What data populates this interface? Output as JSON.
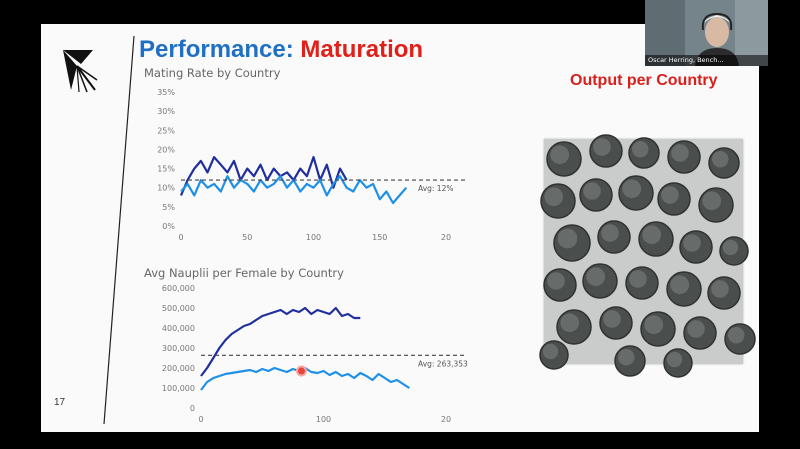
{
  "slide": {
    "title_part1": "Performance:",
    "title_part2": "Maturation",
    "output_title": "Output per Country",
    "slide_number": "17",
    "colors": {
      "title_blue": "#1f6fc5",
      "title_red": "#e0201b",
      "dark_series": "#1f2f9e",
      "light_series": "#1e90e8"
    }
  },
  "webcam": {
    "name": "Oscar Herring, Bench..."
  },
  "chart_data": [
    {
      "type": "line",
      "title": "Mating Rate by Country",
      "x_ticks": [
        "0",
        "50",
        "100",
        "150",
        "20"
      ],
      "y_ticks": [
        "0%",
        "5%",
        "10%",
        "15%",
        "20%",
        "25%",
        "30%",
        "35%"
      ],
      "xlim": [
        0,
        200
      ],
      "ylim": [
        0,
        35
      ],
      "y_unit": "%",
      "grid": false,
      "reference_line": {
        "value": 12,
        "label": "Avg: 12%"
      },
      "series": [
        {
          "x": [
            0,
            5,
            10,
            15,
            20,
            25,
            30,
            35,
            40,
            45,
            50,
            55,
            60,
            65,
            70,
            75,
            80,
            85,
            90,
            95,
            100,
            105,
            110,
            115,
            120,
            125
          ],
          "values": [
            8,
            12,
            15,
            17,
            14,
            18,
            16,
            14,
            17,
            12,
            15,
            13,
            16,
            12,
            15,
            13,
            14,
            12,
            15,
            13,
            18,
            12,
            16,
            10,
            15,
            12
          ],
          "color": "#1f2f9e"
        },
        {
          "x": [
            0,
            5,
            10,
            15,
            20,
            25,
            30,
            35,
            40,
            45,
            50,
            55,
            60,
            65,
            70,
            75,
            80,
            85,
            90,
            95,
            100,
            105,
            110,
            115,
            120,
            125,
            130,
            135,
            140,
            145,
            150,
            155,
            160,
            165,
            170
          ],
          "values": [
            9,
            11,
            8,
            12,
            10,
            11,
            9,
            13,
            10,
            12,
            11,
            9,
            12,
            10,
            11,
            13,
            10,
            12,
            9,
            11,
            10,
            12,
            8,
            11,
            13,
            10,
            9,
            12,
            10,
            11,
            7,
            9,
            6,
            8,
            10
          ],
          "color": "#1e90e8"
        }
      ]
    },
    {
      "type": "line",
      "title": "Avg Nauplii per Female by Country",
      "x_ticks": [
        "0",
        "100",
        "20"
      ],
      "y_ticks": [
        "0",
        "100,000",
        "200,000",
        "300,000",
        "400,000",
        "500,000",
        "600,000"
      ],
      "xlim": [
        0,
        200
      ],
      "ylim": [
        0,
        600000
      ],
      "grid": false,
      "reference_line": {
        "value": 263353,
        "label": "Avg: 263,353"
      },
      "series": [
        {
          "x": [
            0,
            5,
            10,
            15,
            20,
            25,
            30,
            35,
            40,
            45,
            50,
            55,
            60,
            65,
            70,
            75,
            80,
            85,
            90,
            95,
            100,
            105,
            110,
            115,
            120,
            125,
            130
          ],
          "values": [
            160000,
            200000,
            250000,
            300000,
            340000,
            370000,
            390000,
            410000,
            420000,
            440000,
            460000,
            470000,
            480000,
            490000,
            470000,
            490000,
            480000,
            500000,
            470000,
            490000,
            480000,
            470000,
            500000,
            460000,
            470000,
            450000,
            450000
          ],
          "color": "#1f2f9e"
        },
        {
          "x": [
            0,
            5,
            10,
            15,
            20,
            25,
            30,
            35,
            40,
            45,
            50,
            55,
            60,
            65,
            70,
            75,
            80,
            85,
            90,
            95,
            100,
            105,
            110,
            115,
            120,
            125,
            130,
            135,
            140,
            145,
            150,
            155,
            160,
            165,
            170
          ],
          "values": [
            90000,
            130000,
            150000,
            160000,
            170000,
            175000,
            180000,
            185000,
            190000,
            180000,
            195000,
            185000,
            200000,
            190000,
            180000,
            195000,
            185000,
            200000,
            180000,
            175000,
            185000,
            165000,
            180000,
            160000,
            170000,
            150000,
            175000,
            160000,
            140000,
            170000,
            150000,
            130000,
            140000,
            120000,
            100000
          ],
          "color": "#1e90e8"
        }
      ],
      "highlight_point": {
        "x": 82,
        "value": 185000
      }
    }
  ]
}
